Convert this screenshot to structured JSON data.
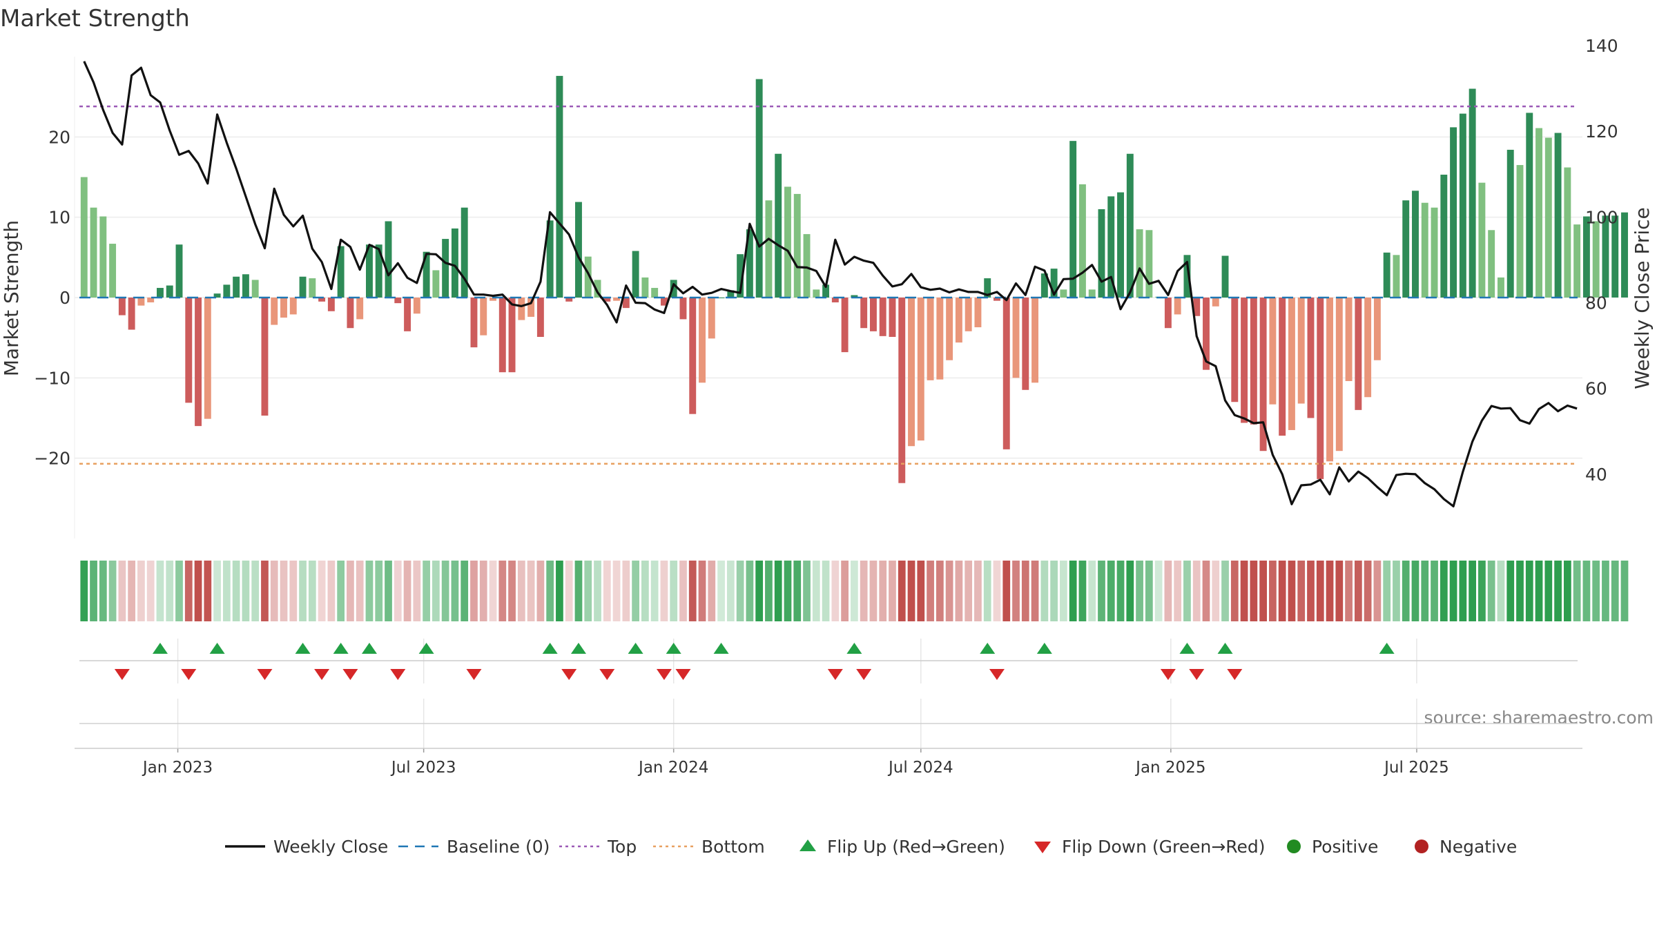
{
  "chart_data": {
    "type": "bar",
    "title": "Market Strength",
    "ylabel_left": "Market Strength",
    "ylabel_right": "Weekly Close Price",
    "source": "source: sharemaestro.com",
    "x_start": "2022-10-24",
    "x_step_days": 7,
    "x_range": [
      "2022-10-17",
      "2025-10-31"
    ],
    "ylim_left": [
      -30,
      30
    ],
    "yticks_left": [
      -20,
      -10,
      0,
      10,
      20
    ],
    "ylim_right": [
      25,
      137.4
    ],
    "yticks_right": [
      40,
      60,
      80,
      100,
      120,
      140
    ],
    "xticks": [
      {
        "date": "2023-01-01",
        "label": "Jan 2023"
      },
      {
        "date": "2023-07-01",
        "label": "Jul 2023"
      },
      {
        "date": "2024-01-01",
        "label": "Jan 2024"
      },
      {
        "date": "2024-07-01",
        "label": "Jul 2024"
      },
      {
        "date": "2025-01-01",
        "label": "Jan 2025"
      },
      {
        "date": "2025-07-01",
        "label": "Jul 2025"
      }
    ],
    "top_level": 23.8,
    "bottom_level": -20.7,
    "grid": true,
    "legend_position": "bottom",
    "strength": [
      15,
      11.2,
      10.1,
      6.7,
      -2.2,
      -4,
      -1,
      -0.6,
      1.2,
      1.5,
      6.6,
      -13.1,
      -16,
      -15.1,
      0.5,
      1.6,
      2.6,
      2.9,
      2.2,
      -14.7,
      -3.4,
      -2.5,
      -2.1,
      2.6,
      2.4,
      -0.5,
      -1.7,
      6.4,
      -3.8,
      -2.7,
      6.6,
      6.6,
      9.5,
      -0.7,
      -4.2,
      -2,
      5.7,
      3.4,
      7.3,
      8.6,
      11.2,
      -6.2,
      -4.7,
      -0.4,
      -9.3,
      -9.3,
      -2.8,
      -2.4,
      -4.9,
      9.6,
      27.6,
      -0.5,
      11.9,
      5.1,
      2.2,
      -0.5,
      -0.4,
      -1.3,
      5.8,
      2.5,
      1.2,
      -1,
      2.2,
      -2.7,
      -14.5,
      -10.6,
      -5.1,
      0,
      0.9,
      5.4,
      8.5,
      27.2,
      12.1,
      17.9,
      13.8,
      12.9,
      7.9,
      1,
      1.6,
      -0.6,
      -6.8,
      0.3,
      -3.8,
      -4.2,
      -4.8,
      -4.9,
      -23.1,
      -18.5,
      -17.8,
      -10.3,
      -10.2,
      -7.8,
      -5.6,
      -4.2,
      -3.7,
      2.4,
      -0.4,
      -18.9,
      -10,
      -11.5,
      -10.6,
      3,
      3.6,
      1,
      19.5,
      14.1,
      1,
      11,
      12.6,
      13.1,
      17.9,
      8.5,
      8.4,
      0.1,
      -3.8,
      -2.1,
      5.3,
      -2.3,
      -9,
      -1.1,
      5.2,
      -13,
      -15.6,
      -15.8,
      -19.1,
      -13.3,
      -17.2,
      -16.5,
      -13.2,
      -15,
      -22.6,
      -20.4,
      -19.1,
      -10.4,
      -14,
      -12.4,
      -7.8,
      5.6,
      5.3,
      12.1,
      13.3,
      11.8,
      11.2,
      15.3,
      21.2,
      22.9,
      26,
      14.3,
      8.4,
      2.5,
      18.4,
      16.5,
      23,
      21.1,
      19.9,
      20.5,
      16.2,
      9.1,
      10.1,
      9.5,
      10.2,
      10.2,
      10.6
    ],
    "weekly_close": [
      136.3,
      131.4,
      125,
      119.6,
      116.9,
      133,
      134.8,
      128.4,
      126.7,
      120.2,
      114.5,
      115.4,
      112.5,
      107.8,
      123.9,
      117.3,
      111.3,
      104.8,
      98.3,
      92.7,
      106.6,
      100.5,
      97.8,
      100.3,
      92.6,
      89.5,
      83.2,
      94.7,
      93,
      87.7,
      93.5,
      92.5,
      86.4,
      89.2,
      85.8,
      84.6,
      91.4,
      91.3,
      89.3,
      88.6,
      85.6,
      81.9,
      81.9,
      81.6,
      81.9,
      79.6,
      79.2,
      79.9,
      84.9,
      101.1,
      98.5,
      95.9,
      90.6,
      86.9,
      82.4,
      79.5,
      75.4,
      84,
      80,
      79.9,
      78.4,
      77.6,
      84.3,
      82.2,
      83.7,
      81.9,
      82.3,
      83.2,
      82.7,
      82.3,
      98.4,
      93.1,
      94.9,
      93.4,
      92.1,
      88.3,
      88.2,
      87.4,
      83.7,
      94.7,
      88.9,
      90.7,
      89.8,
      89.3,
      86.3,
      83.8,
      84.3,
      86.7,
      83.6,
      83,
      83.3,
      82.4,
      83.1,
      82.5,
      82.5,
      81.8,
      82.5,
      80.6,
      84.5,
      81.8,
      88.4,
      87.5,
      81.9,
      85.5,
      85.6,
      87,
      88.8,
      84.9,
      86,
      78.5,
      82.4,
      88,
      84.4,
      85.1,
      81.8,
      87.4,
      89.5,
      72.2,
      66.3,
      65.2,
      57.2,
      53.8,
      53,
      51.9,
      52.1,
      44.5,
      40,
      33,
      37.4,
      37.6,
      38.7,
      35.3,
      41.6,
      38.3,
      40.6,
      39.1,
      37,
      35.1,
      39.8,
      40.1,
      40,
      37.9,
      36.5,
      34.2,
      32.5,
      40.6,
      47.6,
      52.5,
      55.9,
      55.3,
      55.4,
      52.6,
      51.8,
      55.2,
      56.6,
      54.7,
      56,
      55.3
    ]
  },
  "legend": [
    {
      "label": "Weekly Close",
      "kind": "line",
      "color": "#111111"
    },
    {
      "label": "Baseline (0)",
      "kind": "dash",
      "color": "#1f77b4"
    },
    {
      "label": "Top",
      "kind": "dot",
      "color": "#9b59b6"
    },
    {
      "label": "Bottom",
      "kind": "dot",
      "color": "#e8a060"
    },
    {
      "label": "Flip Up (Red→Green)",
      "kind": "up",
      "color": "#22a045"
    },
    {
      "label": "Flip Down (Green→Red)",
      "kind": "down",
      "color": "#d62728"
    },
    {
      "label": "Positive",
      "kind": "circle",
      "color": "#228b22"
    },
    {
      "label": "Negative",
      "kind": "circle",
      "color": "#b22222"
    }
  ],
  "colors": {
    "pos_strong": "#2e8b57",
    "pos_weak": "#80c080",
    "neg_strong": "#cd5c5c",
    "neg_weak": "#e9967a",
    "close_line": "#111111",
    "baseline": "#1f77b4",
    "top": "#9b59b6",
    "bottom": "#e8a060",
    "flip_up": "#22a045",
    "flip_down": "#d62728"
  }
}
